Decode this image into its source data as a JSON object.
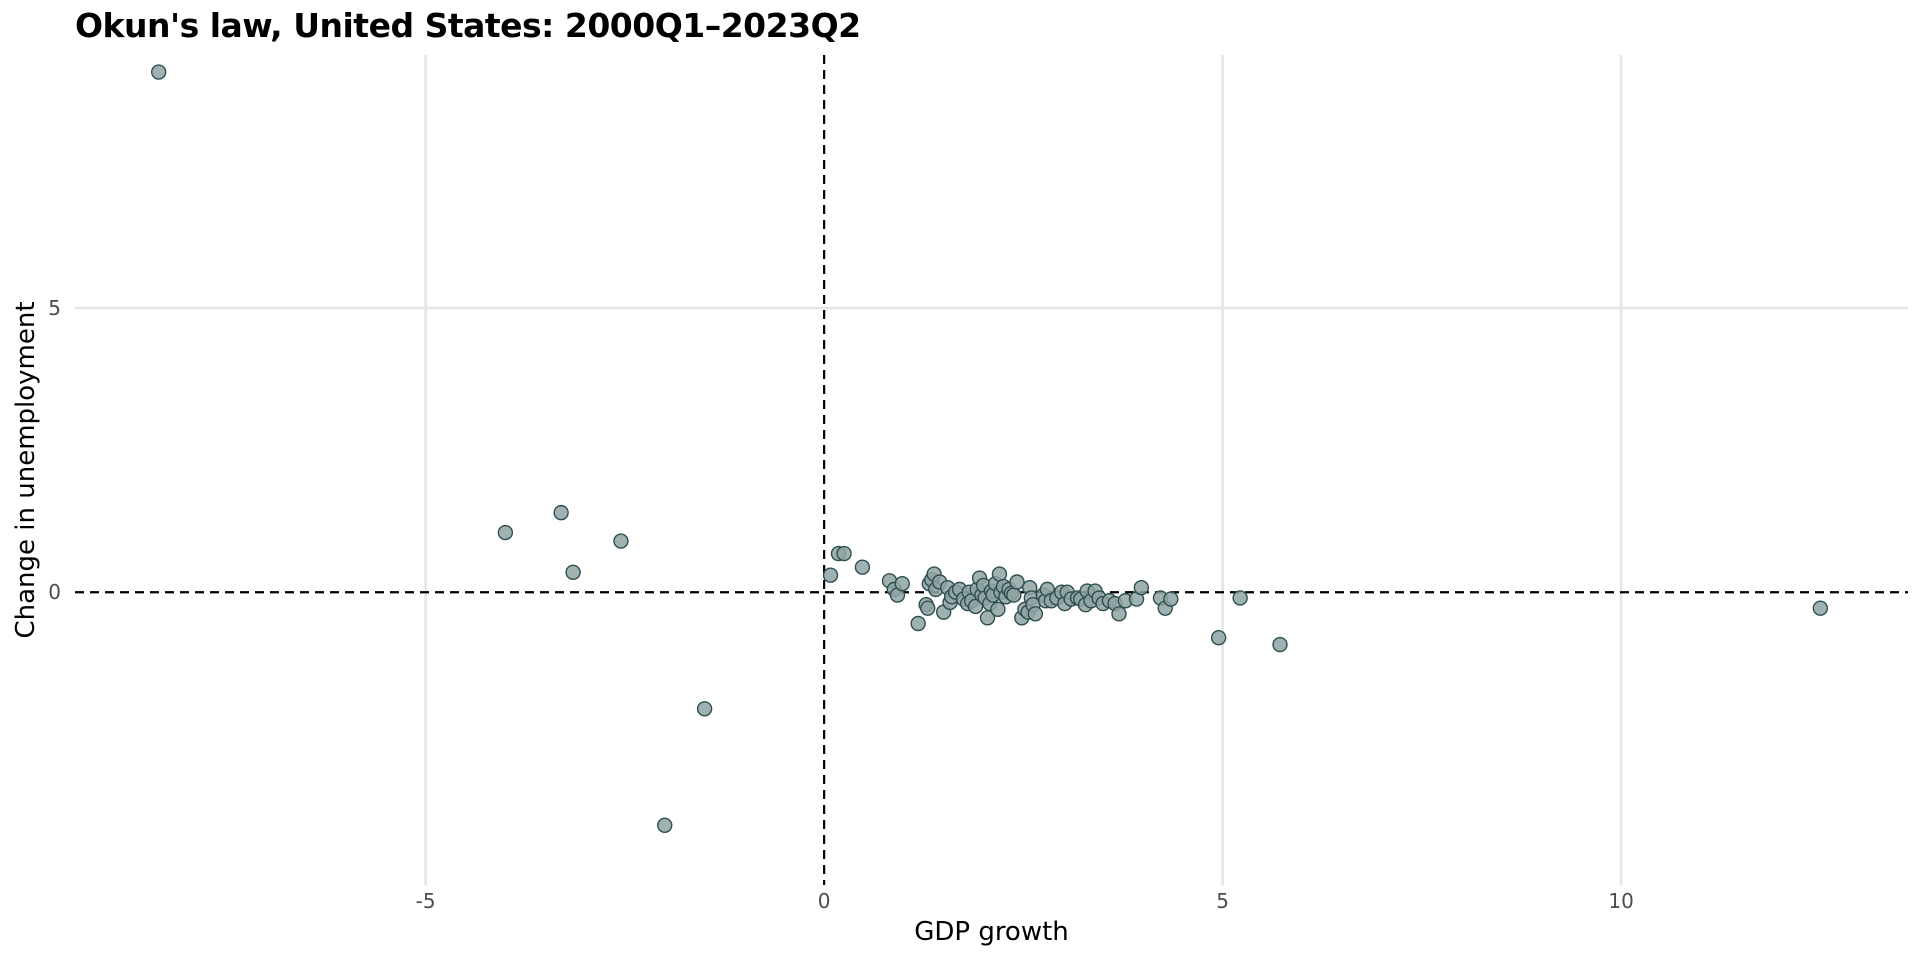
{
  "chart_data": {
    "type": "scatter",
    "title": "Okun's law, United States: 2000Q1–2023Q2",
    "xlabel": "GDP growth",
    "ylabel": "Change in unemployment",
    "xlim": [
      -9.4,
      13.6
    ],
    "ylim": [
      -5.15,
      9.45
    ],
    "x_ticks": [
      -5,
      0,
      5,
      10
    ],
    "x_tick_labels": [
      "-5",
      "0",
      "5",
      "10"
    ],
    "y_ticks": [
      0,
      5
    ],
    "y_tick_labels": [
      "0",
      "5"
    ],
    "grid": "major gridlines on, light gray",
    "reference_lines": {
      "vertical_at_x": 0,
      "horizontal_at_y": 0,
      "style": "dashed black"
    },
    "colors": {
      "point_fill": "#8fa3a3",
      "point_stroke": "#2f4f4f",
      "gridline": "#e5e5e5",
      "reference_line": "#000000"
    },
    "points": [
      {
        "x": -8.35,
        "y": 9.15
      },
      {
        "x": -4.0,
        "y": 1.05
      },
      {
        "x": -3.3,
        "y": 1.4
      },
      {
        "x": -3.15,
        "y": 0.35
      },
      {
        "x": -2.55,
        "y": 0.9
      },
      {
        "x": -1.5,
        "y": -2.05
      },
      {
        "x": -2.0,
        "y": -4.1
      },
      {
        "x": 0.08,
        "y": 0.3
      },
      {
        "x": 0.18,
        "y": 0.68
      },
      {
        "x": 0.25,
        "y": 0.68
      },
      {
        "x": 0.48,
        "y": 0.44
      },
      {
        "x": 0.82,
        "y": 0.2
      },
      {
        "x": 0.88,
        "y": 0.05
      },
      {
        "x": 0.92,
        "y": -0.05
      },
      {
        "x": 0.98,
        "y": 0.15
      },
      {
        "x": 1.18,
        "y": -0.55
      },
      {
        "x": 1.28,
        "y": -0.22
      },
      {
        "x": 1.3,
        "y": -0.28
      },
      {
        "x": 1.32,
        "y": 0.15
      },
      {
        "x": 1.35,
        "y": 0.22
      },
      {
        "x": 1.38,
        "y": 0.32
      },
      {
        "x": 1.4,
        "y": 0.05
      },
      {
        "x": 1.45,
        "y": 0.18
      },
      {
        "x": 1.5,
        "y": -0.35
      },
      {
        "x": 1.55,
        "y": 0.08
      },
      {
        "x": 1.58,
        "y": -0.18
      },
      {
        "x": 1.6,
        "y": -0.08
      },
      {
        "x": 1.65,
        "y": 0.0
      },
      {
        "x": 1.7,
        "y": 0.05
      },
      {
        "x": 1.75,
        "y": -0.12
      },
      {
        "x": 1.8,
        "y": -0.2
      },
      {
        "x": 1.82,
        "y": 0.0
      },
      {
        "x": 1.85,
        "y": -0.15
      },
      {
        "x": 1.9,
        "y": -0.25
      },
      {
        "x": 1.92,
        "y": 0.05
      },
      {
        "x": 1.95,
        "y": 0.25
      },
      {
        "x": 1.98,
        "y": -0.05
      },
      {
        "x": 2.0,
        "y": 0.12
      },
      {
        "x": 2.02,
        "y": -0.1
      },
      {
        "x": 2.05,
        "y": -0.45
      },
      {
        "x": 2.08,
        "y": -0.2
      },
      {
        "x": 2.1,
        "y": 0.02
      },
      {
        "x": 2.12,
        "y": -0.05
      },
      {
        "x": 2.15,
        "y": 0.15
      },
      {
        "x": 2.18,
        "y": -0.3
      },
      {
        "x": 2.2,
        "y": 0.32
      },
      {
        "x": 2.22,
        "y": 0.0
      },
      {
        "x": 2.25,
        "y": 0.1
      },
      {
        "x": 2.28,
        "y": -0.08
      },
      {
        "x": 2.32,
        "y": 0.05
      },
      {
        "x": 2.35,
        "y": -0.02
      },
      {
        "x": 2.38,
        "y": -0.05
      },
      {
        "x": 2.42,
        "y": 0.18
      },
      {
        "x": 2.48,
        "y": -0.45
      },
      {
        "x": 2.52,
        "y": -0.3
      },
      {
        "x": 2.56,
        "y": -0.35
      },
      {
        "x": 2.58,
        "y": 0.08
      },
      {
        "x": 2.6,
        "y": -0.1
      },
      {
        "x": 2.62,
        "y": -0.22
      },
      {
        "x": 2.65,
        "y": -0.38
      },
      {
        "x": 2.75,
        "y": -0.05
      },
      {
        "x": 2.78,
        "y": -0.15
      },
      {
        "x": 2.8,
        "y": 0.05
      },
      {
        "x": 2.85,
        "y": -0.15
      },
      {
        "x": 2.92,
        "y": -0.1
      },
      {
        "x": 2.98,
        "y": 0.0
      },
      {
        "x": 3.02,
        "y": -0.2
      },
      {
        "x": 3.05,
        "y": 0.0
      },
      {
        "x": 3.1,
        "y": -0.12
      },
      {
        "x": 3.18,
        "y": -0.1
      },
      {
        "x": 3.22,
        "y": -0.12
      },
      {
        "x": 3.28,
        "y": -0.22
      },
      {
        "x": 3.3,
        "y": 0.02
      },
      {
        "x": 3.35,
        "y": -0.15
      },
      {
        "x": 3.4,
        "y": 0.02
      },
      {
        "x": 3.45,
        "y": -0.1
      },
      {
        "x": 3.5,
        "y": -0.2
      },
      {
        "x": 3.58,
        "y": -0.15
      },
      {
        "x": 3.65,
        "y": -0.2
      },
      {
        "x": 3.7,
        "y": -0.38
      },
      {
        "x": 3.78,
        "y": -0.15
      },
      {
        "x": 3.92,
        "y": -0.12
      },
      {
        "x": 3.98,
        "y": 0.08
      },
      {
        "x": 4.22,
        "y": -0.1
      },
      {
        "x": 4.28,
        "y": -0.28
      },
      {
        "x": 4.35,
        "y": -0.12
      },
      {
        "x": 4.95,
        "y": -0.8
      },
      {
        "x": 5.22,
        "y": -0.1
      },
      {
        "x": 5.72,
        "y": -0.92
      },
      {
        "x": 12.5,
        "y": -0.28
      }
    ]
  }
}
